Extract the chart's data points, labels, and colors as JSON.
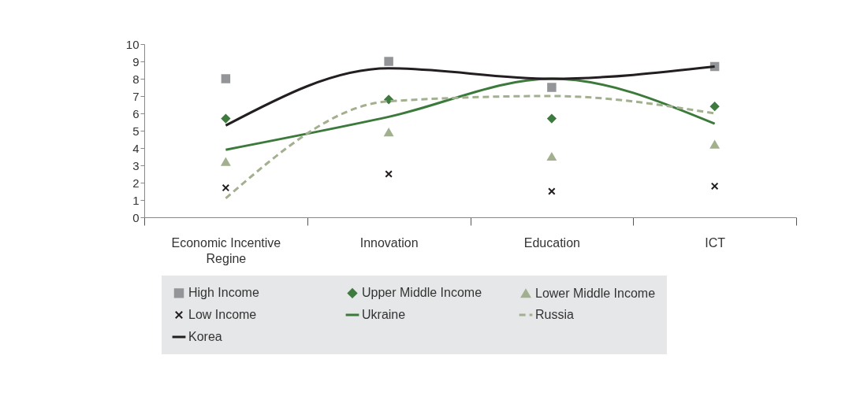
{
  "chart_data": {
    "type": "line",
    "categories": [
      "Economic Incentive Regine",
      "Innovation",
      "Education",
      "ICT"
    ],
    "ylim": [
      0,
      10
    ],
    "yticks": [
      0,
      1,
      2,
      3,
      4,
      5,
      6,
      7,
      8,
      9,
      10
    ],
    "grid": false,
    "legend": "bottom",
    "series": [
      {
        "name": "High Income",
        "type": "scatter",
        "marker": "square",
        "color": "#939598",
        "values": [
          8.0,
          9.0,
          7.5,
          8.7
        ]
      },
      {
        "name": "Upper Middle Income",
        "type": "scatter",
        "marker": "diamond",
        "color": "#3f7a3f",
        "values": [
          5.7,
          6.8,
          5.7,
          6.4
        ]
      },
      {
        "name": "Lower Middle Income",
        "type": "scatter",
        "marker": "triangle",
        "color": "#a3b08f",
        "values": [
          3.2,
          4.9,
          3.5,
          4.2
        ]
      },
      {
        "name": "Low Income",
        "type": "scatter",
        "marker": "cross",
        "color": "#231f20",
        "values": [
          1.7,
          2.5,
          1.5,
          1.8
        ]
      },
      {
        "name": "Ukraine",
        "type": "line",
        "line_style": "solid",
        "color": "#3b7a3b",
        "values": [
          3.9,
          5.8,
          8.0,
          5.4
        ]
      },
      {
        "name": "Russia",
        "type": "line",
        "line_style": "dashed",
        "color": "#a3b08f",
        "values": [
          1.1,
          6.7,
          7.0,
          6.0
        ]
      },
      {
        "name": "Korea",
        "type": "line",
        "line_style": "solid",
        "color": "#231f20",
        "values": [
          5.3,
          8.6,
          8.0,
          8.7
        ]
      }
    ]
  }
}
